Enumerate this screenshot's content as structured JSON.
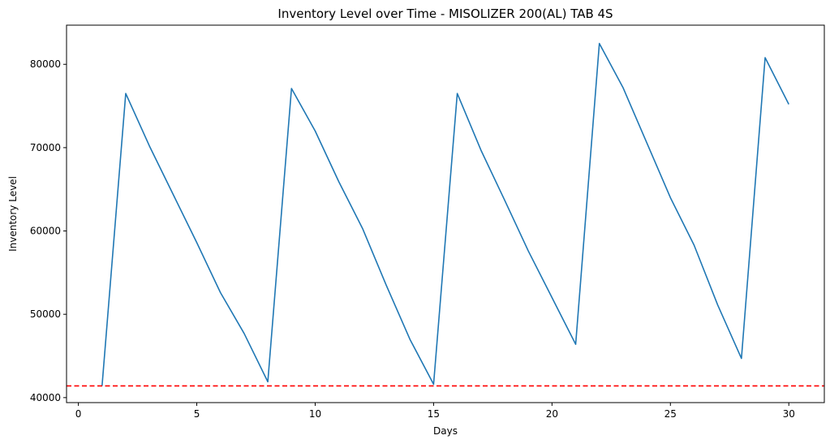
{
  "chart_data": {
    "type": "line",
    "title": "Inventory Level over Time - MISOLIZER 200(AL) TAB 4S",
    "xlabel": "Days",
    "ylabel": "Inventory Level",
    "xlim": [
      -0.5,
      31.5
    ],
    "ylim": [
      39400,
      84700
    ],
    "xticks": [
      0,
      5,
      10,
      15,
      20,
      25,
      30
    ],
    "yticks": [
      40000,
      50000,
      60000,
      70000,
      80000
    ],
    "grid": false,
    "series": [
      {
        "color": "#1f77b4",
        "x": [
          1,
          2,
          3,
          4,
          5,
          6,
          7,
          8,
          9,
          10,
          11,
          12,
          13,
          14,
          15,
          16,
          17,
          18,
          19,
          20,
          21,
          22,
          23,
          24,
          25,
          26,
          27,
          28,
          29,
          30
        ],
        "values": [
          41400,
          76500,
          70200,
          64400,
          58600,
          52600,
          47700,
          41900,
          77100,
          72000,
          65900,
          60300,
          53500,
          47000,
          41600,
          76500,
          69700,
          63700,
          57600,
          52000,
          46400,
          82500,
          77200,
          70600,
          64000,
          58300,
          51100,
          44700,
          80800,
          75200
        ]
      }
    ],
    "reference_line": {
      "y": 41400,
      "color": "#ff0000",
      "style": "dashed"
    }
  }
}
